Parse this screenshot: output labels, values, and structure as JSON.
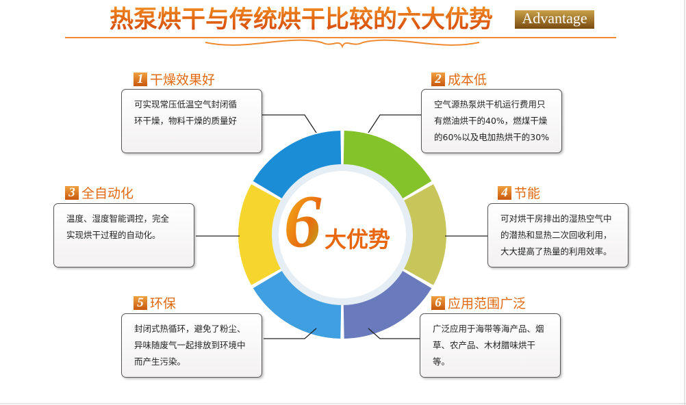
{
  "header": {
    "title": "热泵烘干与传统烘干比较的六大优势",
    "badge": "Advantage"
  },
  "center": {
    "number": "6",
    "label": "大优势"
  },
  "items": [
    {
      "number": "1",
      "title": "干燥效果好",
      "desc": [
        "可实现常压低温空气封闭循",
        "环干燥，物料干燥的质量好"
      ]
    },
    {
      "number": "2",
      "title": "成本低",
      "desc": [
        "空气源热泵烘干机运行费用只",
        "有燃油烘干的40%，燃煤干燥",
        "的60%以及电加热烘干的30%"
      ]
    },
    {
      "number": "3",
      "title": "全自动化",
      "desc": [
        "温度、湿度智能调控，完全",
        "实现烘干过程的自动化。"
      ]
    },
    {
      "number": "4",
      "title": "节能",
      "desc": [
        "可对烘干房排出的湿热空气中",
        "的潜热和显热二次回收利用，",
        "大大提高了热量的利用效率。"
      ]
    },
    {
      "number": "5",
      "title": "环保",
      "desc": [
        "封闭式热循环，避免了粉尘、",
        "异味随废气一起排放到环境中",
        "而产生污染。"
      ]
    },
    {
      "number": "6",
      "title": "应用范围广泛",
      "desc": [
        "广泛应用于海带等海产品、烟",
        "草、农产品、木材腊味烘干",
        "等。"
      ]
    }
  ]
}
